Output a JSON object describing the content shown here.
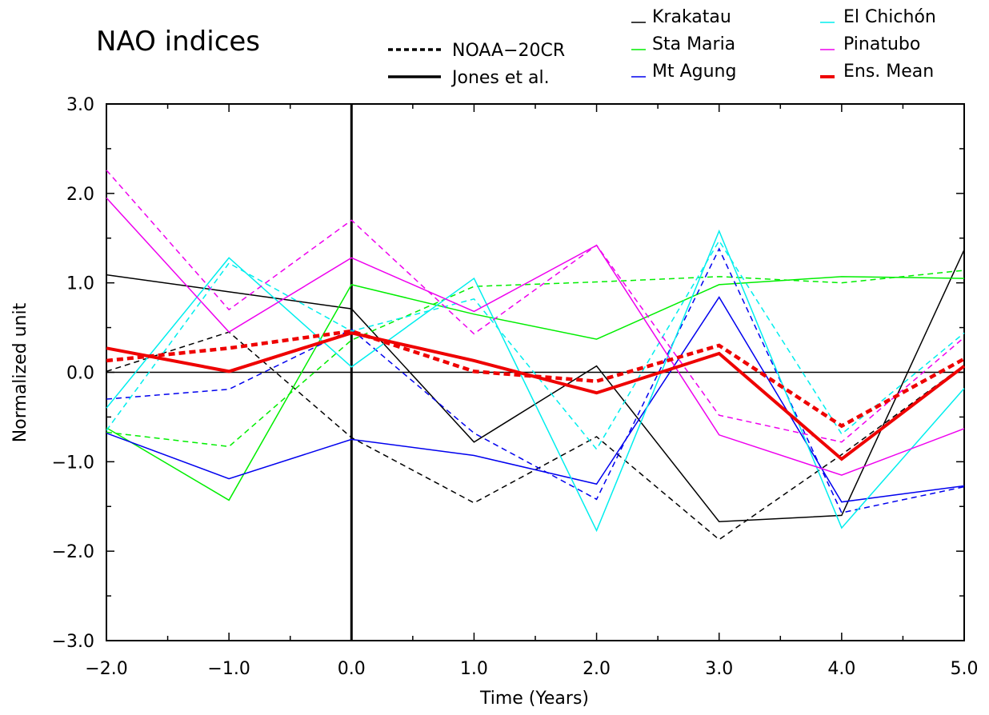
{
  "chart_data": {
    "type": "line",
    "title": "NAO indices",
    "xlabel": "Time (Years)",
    "ylabel": "Normalized unit",
    "xlim": [
      -2,
      5
    ],
    "ylim": [
      -3,
      3
    ],
    "x": [
      -2,
      -1,
      0,
      1,
      2,
      3,
      4,
      5
    ],
    "x_tick_labels": [
      "−2.0",
      "−1.0",
      "0.0",
      "1.0",
      "2.0",
      "3.0",
      "4.0",
      "5.0"
    ],
    "y_ticks": [
      -3,
      -2,
      -1,
      0,
      1,
      2,
      3
    ],
    "y_tick_labels": [
      "−3.0",
      "−2.0",
      "−1.0",
      "0.0",
      "1.0",
      "2.0",
      "3.0"
    ],
    "reference_lines": {
      "y": 0,
      "x": 0
    },
    "style_legend": [
      {
        "label": "NOAA−20CR",
        "dash": "dashed"
      },
      {
        "label": "Jones et al.",
        "dash": "solid"
      }
    ],
    "series": [
      {
        "name": "Krakatau",
        "dataset": "Jones et al.",
        "color": "#000000",
        "width": 1.5,
        "dash": "solid",
        "values": [
          1.09,
          0.9,
          0.71,
          -0.78,
          0.07,
          -1.67,
          -1.6,
          1.37
        ]
      },
      {
        "name": "Krakatau",
        "dataset": "NOAA−20CR",
        "color": "#000000",
        "width": 1.5,
        "dash": "dashed",
        "values": [
          0.01,
          0.45,
          -0.73,
          -1.46,
          -0.72,
          -1.87,
          -0.92,
          0.08
        ]
      },
      {
        "name": "Sta Maria",
        "dataset": "Jones et al.",
        "color": "#00ee00",
        "width": 1.5,
        "dash": "solid",
        "values": [
          -0.62,
          -1.43,
          0.98,
          0.65,
          0.37,
          0.98,
          1.07,
          1.05
        ]
      },
      {
        "name": "Sta Maria",
        "dataset": "NOAA−20CR",
        "color": "#00ee00",
        "width": 1.5,
        "dash": "dashed",
        "values": [
          -0.67,
          -0.83,
          0.36,
          0.96,
          1.01,
          1.07,
          1.0,
          1.14
        ]
      },
      {
        "name": "Mt Agung",
        "dataset": "Jones et al.",
        "color": "#0000ee",
        "width": 1.5,
        "dash": "solid",
        "values": [
          -0.68,
          -1.19,
          -0.75,
          -0.93,
          -1.25,
          0.84,
          -1.45,
          -1.27
        ]
      },
      {
        "name": "Mt Agung",
        "dataset": "NOAA−20CR",
        "color": "#0000ee",
        "width": 1.5,
        "dash": "dashed",
        "values": [
          -0.3,
          -0.19,
          0.48,
          -0.68,
          -1.42,
          1.38,
          -1.57,
          -1.28
        ]
      },
      {
        "name": "El Chichón",
        "dataset": "Jones et al.",
        "color": "#00eeee",
        "width": 1.5,
        "dash": "solid",
        "values": [
          -0.4,
          1.28,
          0.06,
          1.05,
          -1.77,
          1.58,
          -1.74,
          -0.18
        ]
      },
      {
        "name": "El Chichón",
        "dataset": "NOAA−20CR",
        "color": "#00eeee",
        "width": 1.5,
        "dash": "dashed",
        "values": [
          -0.65,
          1.22,
          0.46,
          0.82,
          -0.86,
          1.47,
          -0.69,
          0.44
        ]
      },
      {
        "name": "Pinatubo",
        "dataset": "Jones et al.",
        "color": "#ee00ee",
        "width": 1.5,
        "dash": "solid",
        "values": [
          1.95,
          0.45,
          1.28,
          0.68,
          1.42,
          -0.7,
          -1.15,
          -0.63
        ]
      },
      {
        "name": "Pinatubo",
        "dataset": "NOAA−20CR",
        "color": "#ee00ee",
        "width": 1.5,
        "dash": "dashed",
        "values": [
          2.26,
          0.7,
          1.7,
          0.43,
          1.42,
          -0.48,
          -0.78,
          0.39
        ]
      },
      {
        "name": "Ens. Mean",
        "dataset": "Jones et al.",
        "color": "#ee0000",
        "width": 4,
        "dash": "solid",
        "values": [
          0.27,
          0.01,
          0.44,
          0.13,
          -0.23,
          0.21,
          -0.97,
          0.07
        ]
      },
      {
        "name": "Ens. Mean",
        "dataset": "NOAA−20CR",
        "color": "#ee0000",
        "width": 4.5,
        "dash": "dashed",
        "values": [
          0.13,
          0.27,
          0.46,
          0.01,
          -0.1,
          0.3,
          -0.6,
          0.15
        ]
      }
    ],
    "legend": {
      "placement": "top-right",
      "entries": [
        {
          "label": "Krakatau",
          "color": "#000000"
        },
        {
          "label": "Sta Maria",
          "color": "#00ee00"
        },
        {
          "label": "Mt Agung",
          "color": "#0000ee"
        },
        {
          "label": "El Chichón",
          "color": "#00eeee"
        },
        {
          "label": "Pinatubo",
          "color": "#ee00ee"
        },
        {
          "label": "Ens. Mean",
          "color": "#ee0000"
        }
      ]
    },
    "grid": false
  }
}
